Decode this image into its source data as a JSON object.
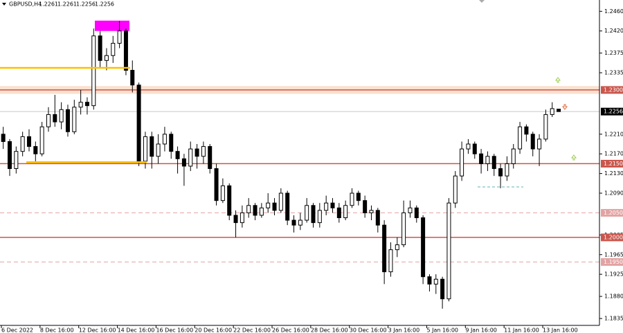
{
  "chart_data": {
    "type": "candlestick",
    "title": "GBPUSD,H4",
    "header_values": [
      1.2261,
      1.2261,
      1.2256,
      1.2256
    ],
    "x_labels": [
      "6 Dec 2022",
      "8 Dec 16:00",
      "12 Dec 16:00",
      "14 Dec 16:00",
      "16 Dec 16:00",
      "20 Dec 16:00",
      "22 Dec 16:00",
      "26 Dec 16:00",
      "28 Dec 16:00",
      "30 Dec 16:00",
      "3 Jan 16:00",
      "5 Jan 16:00",
      "9 Jan 16:00",
      "11 Jan 16:00",
      "13 Jan 16:00"
    ],
    "open": [
      1.221,
      1.2195,
      1.214,
      1.2175,
      1.2205,
      1.2185,
      1.217,
      1.2225,
      1.225,
      1.2235,
      1.226,
      1.2215,
      1.2265,
      1.2275,
      1.2268,
      1.241,
      1.236,
      1.237,
      1.2395,
      1.242,
      1.234,
      1.231,
      1.2155,
      1.2205,
      1.2165,
      1.219,
      1.221,
      1.2175,
      1.216,
      1.2145,
      1.218,
      1.2165,
      1.2185,
      1.214,
      1.2075,
      1.2105,
      1.2045,
      1.203,
      1.205,
      1.2065,
      1.2045,
      1.206,
      1.207,
      1.2055,
      1.209,
      1.2035,
      1.2025,
      1.2035,
      1.2065,
      1.203,
      1.2055,
      1.207,
      1.206,
      1.204,
      1.2065,
      1.209,
      1.2075,
      1.205,
      1.2055,
      1.2025,
      1.193,
      1.1975,
      1.1985,
      1.205,
      1.206,
      1.204,
      1.192,
      1.1905,
      1.1915,
      1.1875,
      1.207,
      1.2125,
      1.218,
      1.219,
      1.217,
      1.215,
      1.2165,
      1.214,
      1.2125,
      1.215,
      1.218,
      1.2225,
      1.221,
      1.218,
      1.22,
      1.225,
      1.2261
    ],
    "high": [
      1.2225,
      1.22,
      1.2185,
      1.2215,
      1.222,
      1.2195,
      1.2235,
      1.2265,
      1.229,
      1.2275,
      1.227,
      1.228,
      1.23,
      1.2285,
      1.2425,
      1.242,
      1.2385,
      1.241,
      1.244,
      1.2425,
      1.236,
      1.2315,
      1.2215,
      1.2215,
      1.221,
      1.2225,
      1.2215,
      1.2185,
      1.217,
      1.2195,
      1.219,
      1.2195,
      1.219,
      1.215,
      1.212,
      1.211,
      1.2055,
      1.2065,
      1.208,
      1.207,
      1.207,
      1.209,
      1.208,
      1.21,
      1.2095,
      1.2045,
      1.205,
      1.208,
      1.207,
      1.207,
      1.2085,
      1.208,
      1.207,
      1.2075,
      1.21,
      1.2095,
      1.2085,
      1.2065,
      1.206,
      1.2035,
      1.199,
      1.2,
      1.2075,
      1.2075,
      1.2065,
      1.2045,
      1.1925,
      1.1925,
      1.192,
      1.208,
      1.2135,
      1.2195,
      1.22,
      1.2195,
      1.218,
      1.2175,
      1.217,
      1.215,
      1.2165,
      1.219,
      1.2235,
      1.223,
      1.2215,
      1.221,
      1.226,
      1.2275,
      1.2261
    ],
    "low": [
      1.218,
      1.2125,
      1.213,
      1.2165,
      1.2175,
      1.2155,
      1.2165,
      1.2215,
      1.2225,
      1.222,
      1.2205,
      1.221,
      1.225,
      1.225,
      1.226,
      1.2345,
      1.234,
      1.2355,
      1.2385,
      1.233,
      1.2295,
      1.2145,
      1.214,
      1.214,
      1.215,
      1.2175,
      1.216,
      1.213,
      1.2105,
      1.2135,
      1.214,
      1.215,
      1.213,
      1.2065,
      1.207,
      1.2035,
      1.2,
      1.202,
      1.204,
      1.2035,
      1.204,
      1.205,
      1.2045,
      1.205,
      1.2025,
      1.201,
      1.2015,
      1.203,
      1.202,
      1.202,
      1.2045,
      1.205,
      1.203,
      1.2035,
      1.206,
      1.2065,
      1.204,
      1.2035,
      1.201,
      1.1905,
      1.192,
      1.196,
      1.198,
      1.204,
      1.203,
      1.1905,
      1.189,
      1.1885,
      1.1855,
      1.187,
      1.206,
      1.2115,
      1.217,
      1.216,
      1.213,
      1.2135,
      1.2125,
      1.21,
      1.2115,
      1.214,
      1.217,
      1.2195,
      1.2165,
      1.2145,
      1.2195,
      1.2245,
      1.2256
    ],
    "close": [
      1.2195,
      1.214,
      1.2175,
      1.2205,
      1.2185,
      1.217,
      1.2225,
      1.225,
      1.2235,
      1.226,
      1.2215,
      1.2265,
      1.2275,
      1.2268,
      1.241,
      1.236,
      1.237,
      1.2395,
      1.242,
      1.234,
      1.231,
      1.2155,
      1.2205,
      1.2165,
      1.219,
      1.221,
      1.2175,
      1.216,
      1.2145,
      1.218,
      1.2165,
      1.2185,
      1.214,
      1.2075,
      1.2105,
      1.2045,
      1.203,
      1.205,
      1.2065,
      1.2045,
      1.206,
      1.207,
      1.2055,
      1.209,
      1.2035,
      1.2025,
      1.2035,
      1.2065,
      1.203,
      1.2055,
      1.207,
      1.206,
      1.204,
      1.2065,
      1.209,
      1.2075,
      1.205,
      1.2055,
      1.2025,
      1.193,
      1.1975,
      1.1985,
      1.205,
      1.206,
      1.204,
      1.192,
      1.1905,
      1.1915,
      1.1875,
      1.207,
      1.2125,
      1.218,
      1.219,
      1.217,
      1.215,
      1.2165,
      1.214,
      1.2125,
      1.215,
      1.218,
      1.2225,
      1.221,
      1.218,
      1.22,
      1.225,
      1.2262,
      1.2256
    ],
    "ylim": [
      1.1821,
      1.2483
    ],
    "yticks": [
      {
        "value": 1.246,
        "label": "1.2460"
      },
      {
        "value": 1.242,
        "label": "1.2420"
      },
      1.2375,
      1.2335,
      {
        "value": 1.221,
        "label": "1.2210"
      },
      {
        "value": 1.217,
        "label": "1.2170"
      },
      {
        "value": 1.213,
        "label": "1.2130"
      },
      {
        "value": 1.209,
        "label": "1.2090"
      },
      1.2005,
      1.1965,
      1.1925,
      {
        "value": 1.188,
        "label": "1.1880"
      },
      1.1835
    ],
    "levels": [
      {
        "value": 1.23,
        "label": "1.2300",
        "style": "solid"
      },
      {
        "value": 1.215,
        "label": "1.2150",
        "style": "solid"
      },
      {
        "value": 1.205,
        "label": "1.2050",
        "style": "dashed"
      },
      {
        "value": 1.2,
        "label": "1.2000",
        "style": "solid"
      },
      {
        "value": 1.195,
        "label": "1.1950",
        "style": "dashed"
      }
    ],
    "level_color": "#c9564c",
    "dashed_level_color": "#e3a2a2",
    "current_price": 1.2256,
    "zone": {
      "low": 1.2292,
      "high": 1.2308,
      "color": "#fbe0cf"
    },
    "box": {
      "low": 1.242,
      "high": 1.2441,
      "color": "#ff00ff"
    },
    "horizontal_lines": [
      {
        "value": 1.2345,
        "color": "#ffc000"
      },
      {
        "value": 1.2153,
        "color": "#ffc000"
      }
    ]
  }
}
